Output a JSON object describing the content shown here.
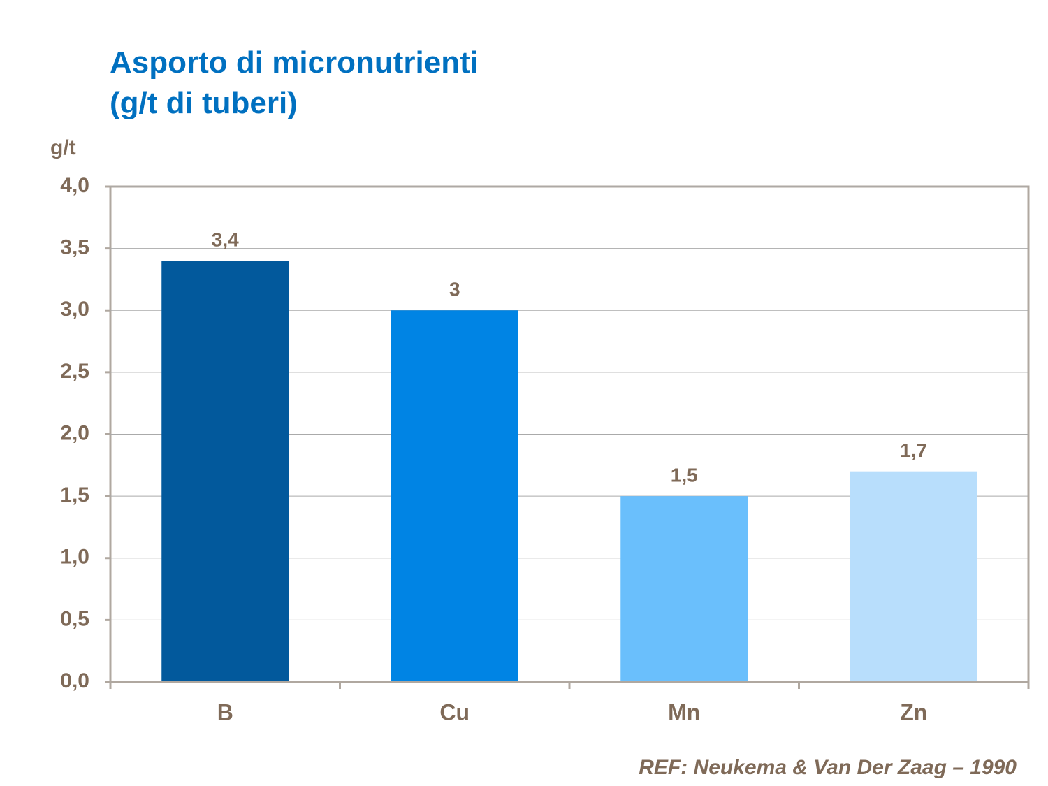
{
  "chart_data": {
    "type": "bar",
    "title": "Asporto di micronutrienti",
    "subtitle": "(g/t di tuberi)",
    "y_label": "g/t",
    "categories": [
      "B",
      "Cu",
      "Mn",
      "Zn"
    ],
    "values": [
      3.4,
      3,
      1.5,
      1.7
    ],
    "value_labels": [
      "3,4",
      "3",
      "1,5",
      "1,7"
    ],
    "colors": [
      "#02599c",
      "#0084e4",
      "#6abffc",
      "#b8defc"
    ],
    "ylim": [
      0,
      4
    ],
    "yticks": [
      {
        "value": 0,
        "label": "0,0"
      },
      {
        "value": 0.5,
        "label": "0,5"
      },
      {
        "value": 1,
        "label": "1,0"
      },
      {
        "value": 1.5,
        "label": "1,5"
      },
      {
        "value": 2,
        "label": "2,0"
      },
      {
        "value": 2.5,
        "label": "2,5"
      },
      {
        "value": 3,
        "label": "3,0"
      },
      {
        "value": 3.5,
        "label": "3,5"
      },
      {
        "value": 4,
        "label": "4,0"
      }
    ],
    "grid": true,
    "source": "REF: Neukema & Van Der Zaag – 1990"
  }
}
